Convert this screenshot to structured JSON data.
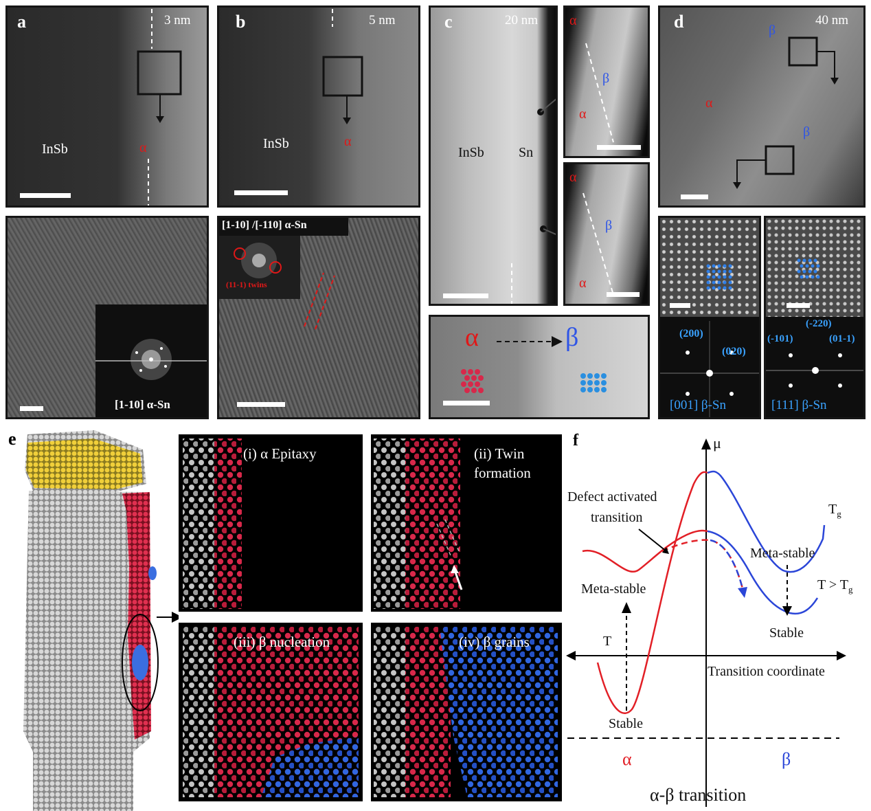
{
  "panel_a": {
    "label": "a",
    "scale": "3 nm",
    "material": "InSb",
    "phase": "α",
    "inset_caption": "[1-10] α-Sn"
  },
  "panel_b": {
    "label": "b",
    "scale": "5 nm",
    "material": "InSb",
    "phase": "α",
    "inset_caption": "[1-10] /[-110] α-Sn",
    "twins_label": "(11-1) twins"
  },
  "panel_c": {
    "label": "c",
    "scale": "20 nm",
    "material_left": "InSb",
    "material_right": "Sn",
    "alpha": "α",
    "beta": "β",
    "arrow_from": "α",
    "arrow_to": "β"
  },
  "panel_d": {
    "label": "d",
    "scale": "40 nm",
    "alpha": "α",
    "beta": "β",
    "fft1_spots": [
      "(200)",
      "(020)"
    ],
    "fft1_caption": "[001] β-Sn",
    "fft2_spots": [
      "(-220)",
      "(-101)",
      "(01-1)"
    ],
    "fft2_caption": "[111] β-Sn"
  },
  "panel_e": {
    "label": "e",
    "stages": [
      "(i) α Epitaxy",
      "(ii) Twin",
      "formation",
      "(iii) β nucleation",
      "(iv) β grains"
    ],
    "colors": {
      "insb": "#b8b8b8",
      "alpha": "#d8284a",
      "beta": "#2f5fd8",
      "cap": "#e8c534"
    }
  },
  "panel_f": {
    "label": "f",
    "y_axis": "μ",
    "x_axis": "Transition coordinate",
    "t_label": "T",
    "tg_label": "T",
    "tg_sub": "g",
    "t_gt_label": "T > T",
    "defect_label_1": "Defect activated",
    "defect_label_2": "transition",
    "metastable_beta": "Meta-stable",
    "metastable_alpha": "Meta-stable",
    "stable_beta": "Stable",
    "stable_alpha": "Stable",
    "alpha": "α",
    "beta": "β",
    "title": "α-β transition",
    "colors": {
      "low_T": "#e21f26",
      "high_T": "#2b46d8",
      "peak": "#7a3a9a"
    }
  }
}
